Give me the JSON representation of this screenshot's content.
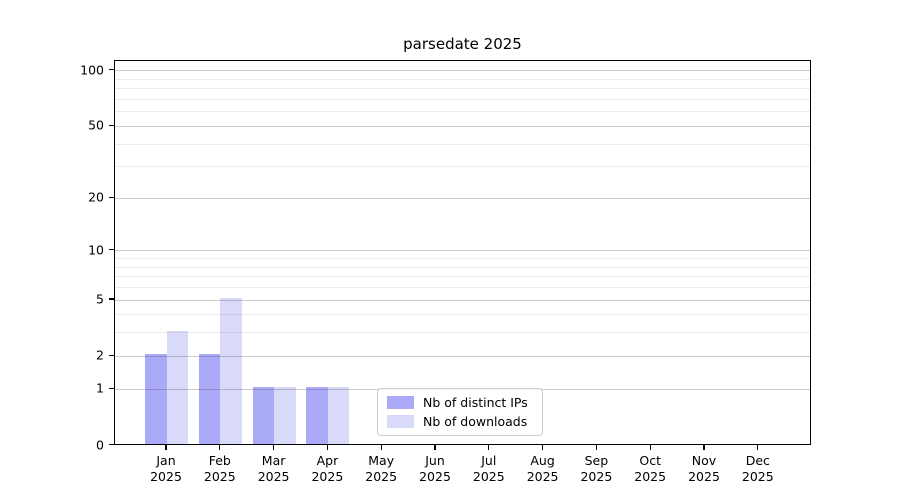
{
  "chart_data": {
    "type": "bar",
    "title": "parsedate 2025",
    "categories": [
      "Jan",
      "Feb",
      "Mar",
      "Apr",
      "May",
      "Jun",
      "Jul",
      "Aug",
      "Sep",
      "Oct",
      "Nov",
      "Dec"
    ],
    "category_sub_label": "2025",
    "series": [
      {
        "name": "Nb of distinct IPs",
        "color": "#aaaaf8",
        "values": [
          2,
          2,
          1,
          1,
          0,
          0,
          0,
          0,
          0,
          0,
          0,
          0
        ]
      },
      {
        "name": "Nb of downloads",
        "color": "#d9d9fa",
        "values": [
          3,
          5,
          1,
          1,
          0,
          0,
          0,
          0,
          0,
          0,
          0,
          0
        ]
      }
    ],
    "xlabel": "",
    "ylabel": "",
    "yscale": "log10(1+y)",
    "ylim": [
      0,
      113
    ],
    "ytick_values": [
      0,
      1,
      2,
      5,
      10,
      20,
      50,
      100
    ],
    "ytick_labels": [
      "0",
      "1",
      "2",
      "5",
      "10",
      "20",
      "50",
      "100"
    ],
    "yminor_values": [
      3,
      4,
      6,
      7,
      8,
      9,
      30,
      40,
      60,
      70,
      80,
      90
    ],
    "grid": "horizontal major+minor, drawn over bars",
    "legend_position": "lower center",
    "colors": {
      "background": "#ffffff",
      "spine": "#000000",
      "major_grid": "#cfcfcf",
      "minor_grid": "#ececec",
      "legend_border": "#cccccc"
    }
  }
}
